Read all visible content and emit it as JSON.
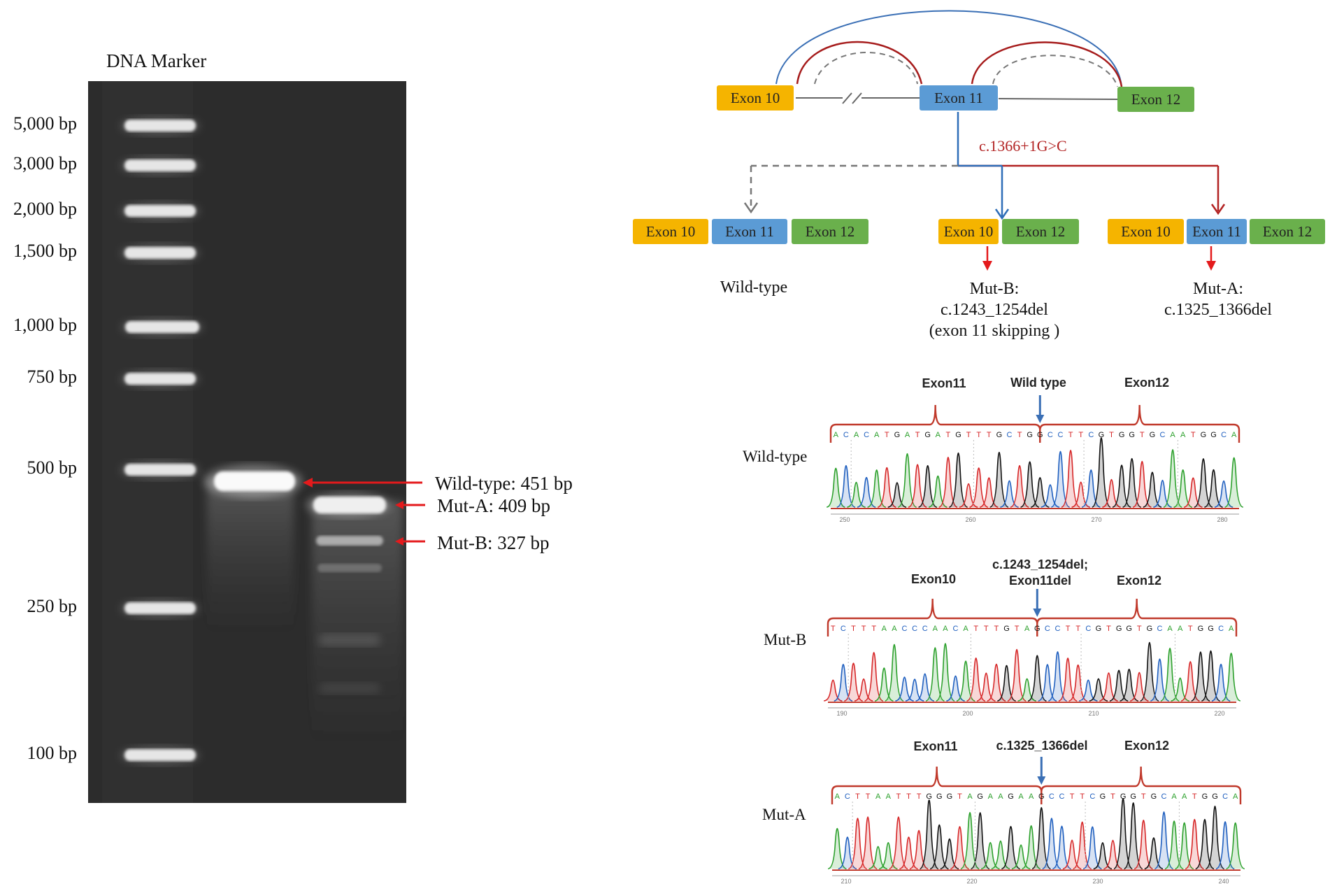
{
  "gel": {
    "marker_title": "DNA Marker",
    "ladder": [
      {
        "label": "5,000 bp"
      },
      {
        "label": "3,000 bp"
      },
      {
        "label": "2,000 bp"
      },
      {
        "label": "1,500 bp"
      },
      {
        "label": "1,000 bp"
      },
      {
        "label": "750 bp"
      },
      {
        "label": "500 bp"
      },
      {
        "label": "250 bp"
      },
      {
        "label": "100 bp"
      }
    ],
    "bands": [
      {
        "label": "Wild-type: 451 bp"
      },
      {
        "label": "Mut-A: 409 bp"
      },
      {
        "label": "Mut-B: 327 bp"
      }
    ],
    "colors": {
      "gel_bg": "#2b2b2b",
      "band": "#f2f2f2",
      "arrow": "#e41a1c"
    }
  },
  "splice": {
    "top_exons": [
      "Exon 10",
      "Exon 11",
      "Exon 12"
    ],
    "mutation": "c.1366+1G>C",
    "isoforms": {
      "wild_type": {
        "exons": [
          "Exon 10",
          "Exon 11",
          "Exon 12"
        ],
        "label": "Wild-type"
      },
      "mut_b": {
        "exons": [
          "Exon 10",
          "Exon 12"
        ],
        "label_lines": [
          "Mut-B:",
          "c.1243_1254del",
          "(exon 11 skipping )"
        ]
      },
      "mut_a": {
        "exons": [
          "Exon 10",
          "Exon 11",
          "Exon 12"
        ],
        "label_lines": [
          "Mut-A:",
          "c.1325_1366del"
        ]
      }
    },
    "colors": {
      "exon10": "#f5b400",
      "exon11": "#5b9bd5",
      "exon12": "#6ab04c",
      "mutation": "#c0392b",
      "arc_blue": "#3a6fb5",
      "arc_red": "#a61c1c",
      "dashed": "#777777"
    }
  },
  "sequencing": [
    {
      "name": "Wild-type",
      "left_header": "Exon11",
      "mid_header": "Wild type",
      "right_header": "Exon12",
      "bases": "ACACATGATGATGTTTGCTGGCCTTCGTGGTGCAATGGCA",
      "axis": [
        "250",
        "260",
        "270",
        "280"
      ]
    },
    {
      "name": "Mut-B",
      "left_header": "Exon10",
      "mid_header_lines": [
        "c.1243_1254del;",
        "Exon11del"
      ],
      "right_header": "Exon12",
      "bases": "TCTTTAACCCAACATTTGTAGCCTTCGTGGTGCAATGGCA",
      "axis": [
        "190",
        "200",
        "210",
        "220"
      ]
    },
    {
      "name": "Mut-A",
      "left_header": "Exon11",
      "mid_header": "c.1325_1366del",
      "right_header": "Exon12",
      "bases": "ACTTAATTTGGGTAGAAGAAGCCTTCGTGGTGCAATGGCA",
      "axis": [
        "210",
        "220",
        "230",
        "240"
      ]
    }
  ],
  "base_colors": {
    "A": "#2ca02c",
    "C": "#1f5fbf",
    "G": "#111111",
    "T": "#d62728"
  }
}
